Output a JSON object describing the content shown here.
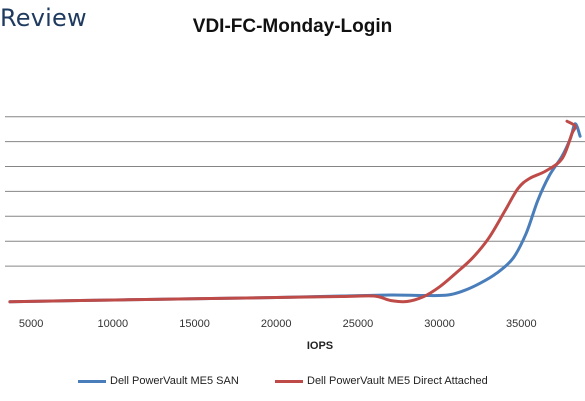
{
  "brand": {
    "text": "Review"
  },
  "colors": {
    "series_1": "#4a7ebb",
    "series_2": "#be4b48",
    "gridline": "#868686"
  },
  "chart_data": {
    "type": "line",
    "title": "VDI-FC-Monday-Login",
    "xlabel": "IOPS",
    "ylabel": "",
    "xlim": [
      3400,
      38900
    ],
    "ylim": [
      0,
      10
    ],
    "x_ticks": [
      5000,
      10000,
      15000,
      20000,
      25000,
      30000,
      35000
    ],
    "y_ticks": [
      1,
      2,
      3,
      4,
      5,
      6,
      7
    ],
    "y_tick_labels_visible": false,
    "grid": "horizontal",
    "legend_position": "bottom",
    "series": [
      {
        "name": "Dell PowerVault ME5 SAN",
        "points": [
          [
            3700,
            0.05
          ],
          [
            8000,
            0.1
          ],
          [
            12000,
            0.14
          ],
          [
            16000,
            0.18
          ],
          [
            20000,
            0.22
          ],
          [
            24000,
            0.28
          ],
          [
            27000,
            0.32
          ],
          [
            29000,
            0.3
          ],
          [
            30500,
            0.32
          ],
          [
            31500,
            0.5
          ],
          [
            32500,
            0.8
          ],
          [
            33500,
            1.2
          ],
          [
            34500,
            1.8
          ],
          [
            35300,
            2.8
          ],
          [
            36000,
            4.1
          ],
          [
            36700,
            5.1
          ],
          [
            37500,
            5.9
          ],
          [
            38000,
            6.6
          ],
          [
            38300,
            7.2
          ],
          [
            38600,
            6.7
          ]
        ]
      },
      {
        "name": "Dell PowerVault ME5 Direct Attached",
        "points": [
          [
            3700,
            0.05
          ],
          [
            8000,
            0.1
          ],
          [
            12000,
            0.14
          ],
          [
            16000,
            0.18
          ],
          [
            20000,
            0.22
          ],
          [
            24000,
            0.26
          ],
          [
            26000,
            0.28
          ],
          [
            27000,
            0.1
          ],
          [
            28000,
            0.06
          ],
          [
            29000,
            0.25
          ],
          [
            30000,
            0.65
          ],
          [
            31000,
            1.2
          ],
          [
            32000,
            1.8
          ],
          [
            33000,
            2.6
          ],
          [
            34000,
            3.7
          ],
          [
            34800,
            4.6
          ],
          [
            35500,
            5.0
          ],
          [
            36500,
            5.3
          ],
          [
            37500,
            5.8
          ],
          [
            38100,
            6.8
          ],
          [
            38300,
            7.1
          ],
          [
            37800,
            7.3
          ]
        ]
      }
    ]
  }
}
